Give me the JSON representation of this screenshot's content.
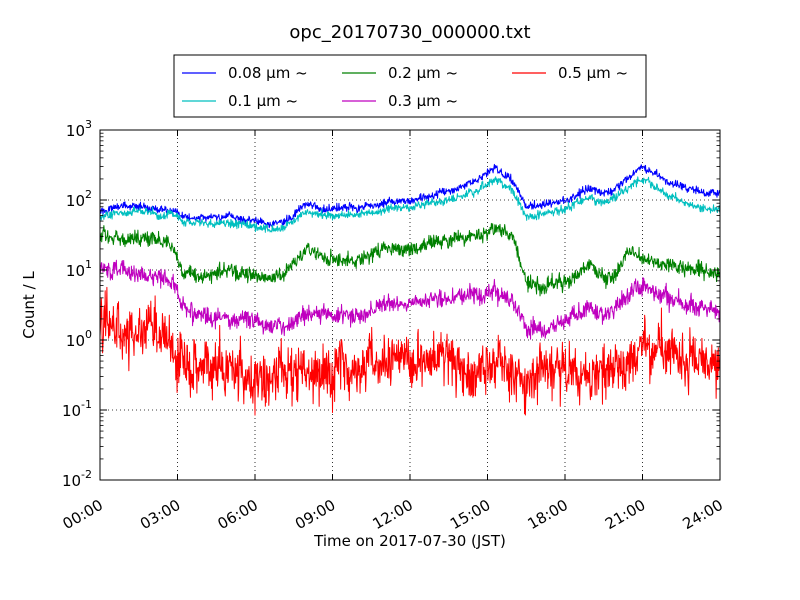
{
  "chart_data": {
    "type": "line",
    "title": "opc_20170730_000000.txt",
    "xlabel": "Time on 2017-07-30 (JST)",
    "ylabel": "Count / L",
    "xlim": [
      "00:00",
      "24:00"
    ],
    "ylim": [
      0.01,
      1000
    ],
    "yscale": "log",
    "grid": true,
    "legend_position": "top-center",
    "xticks": [
      "00:00",
      "03:00",
      "06:00",
      "09:00",
      "12:00",
      "15:00",
      "18:00",
      "21:00",
      "24:00"
    ],
    "yticks": [
      {
        "base": "10",
        "exp": "-2"
      },
      {
        "base": "10",
        "exp": "-1"
      },
      {
        "base": "10",
        "exp": "0"
      },
      {
        "base": "10",
        "exp": "1"
      },
      {
        "base": "10",
        "exp": "2"
      },
      {
        "base": "10",
        "exp": "3"
      }
    ],
    "x_hours": [
      0,
      1,
      2,
      2.8,
      3.2,
      4,
      5,
      6,
      6.6,
      7.2,
      8,
      9,
      10,
      11,
      12,
      13,
      14,
      14.8,
      15.3,
      16,
      16.5,
      17,
      18,
      19,
      19.5,
      20,
      20.5,
      21,
      22,
      23,
      24
    ],
    "series": [
      {
        "name": "0.08 μm ~",
        "color": "#0000ff",
        "noise": 0.05,
        "values": [
          70,
          85,
          75,
          70,
          58,
          55,
          58,
          52,
          45,
          50,
          85,
          72,
          78,
          90,
          100,
          120,
          150,
          220,
          300,
          180,
          80,
          85,
          100,
          150,
          120,
          150,
          210,
          300,
          180,
          140,
          120
        ]
      },
      {
        "name": "0.1 μm ~",
        "color": "#00bfbf",
        "noise": 0.05,
        "values": [
          60,
          68,
          62,
          60,
          48,
          46,
          48,
          43,
          37,
          42,
          68,
          58,
          62,
          72,
          80,
          92,
          110,
          150,
          200,
          130,
          58,
          62,
          75,
          110,
          90,
          110,
          155,
          200,
          110,
          80,
          70
        ]
      },
      {
        "name": "0.2 μm ~",
        "color": "#008000",
        "noise": 0.09,
        "values": [
          30,
          29,
          27,
          24,
          9,
          8,
          10,
          8.5,
          8,
          9,
          20,
          14,
          13,
          20,
          18,
          26,
          28,
          32,
          40,
          30,
          7,
          6,
          7,
          12,
          8,
          10,
          20,
          15,
          12,
          10,
          8
        ]
      },
      {
        "name": "0.3 μm ~",
        "color": "#bf00bf",
        "noise": 0.11,
        "values": [
          10,
          10,
          8,
          7,
          3,
          2.1,
          2,
          1.9,
          1.4,
          1.5,
          2.4,
          2.2,
          2.3,
          3,
          3.3,
          4,
          4.4,
          4.5,
          5,
          3.5,
          1.5,
          1.4,
          2,
          3,
          2.1,
          2.8,
          4.5,
          6,
          4,
          3,
          2.5
        ]
      },
      {
        "name": "0.5 μm ~",
        "color": "#ff0000",
        "noise": 0.32,
        "values": [
          1.7,
          1.5,
          1.3,
          1.0,
          0.45,
          0.38,
          0.35,
          0.28,
          0.27,
          0.3,
          0.33,
          0.3,
          0.4,
          0.5,
          0.5,
          0.48,
          0.4,
          0.38,
          0.42,
          0.36,
          0.25,
          0.3,
          0.28,
          0.35,
          0.38,
          0.4,
          0.55,
          0.6,
          0.6,
          0.5,
          0.42
        ]
      }
    ]
  }
}
